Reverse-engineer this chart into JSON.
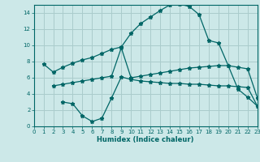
{
  "bg_color": "#cce8e8",
  "grid_color": "#aacccc",
  "line_color": "#006666",
  "xlabel": "Humidex (Indice chaleur)",
  "ylim": [
    0,
    15
  ],
  "xlim": [
    0,
    23
  ],
  "yticks": [
    0,
    2,
    4,
    6,
    8,
    10,
    12,
    14
  ],
  "xticks": [
    0,
    1,
    2,
    3,
    4,
    5,
    6,
    7,
    8,
    9,
    10,
    11,
    12,
    13,
    14,
    15,
    16,
    17,
    18,
    19,
    20,
    21,
    22,
    23
  ],
  "line1_x": [
    1,
    2,
    3,
    4,
    5,
    6,
    7,
    8,
    9,
    10,
    11,
    12,
    13,
    14,
    15,
    16,
    17,
    18,
    19,
    20,
    21,
    22,
    23
  ],
  "line1_y": [
    7.7,
    6.7,
    7.3,
    7.8,
    8.2,
    8.5,
    9.0,
    9.5,
    9.8,
    11.5,
    12.7,
    13.5,
    14.3,
    15.0,
    15.1,
    14.8,
    13.8,
    10.6,
    10.3,
    7.5,
    4.6,
    3.6,
    2.5
  ],
  "line2_x": [
    2,
    3,
    4,
    5,
    6,
    7,
    8,
    9,
    10,
    11,
    12,
    13,
    14,
    15,
    16,
    17,
    18,
    19,
    20,
    21,
    22,
    23
  ],
  "line2_y": [
    5.0,
    5.2,
    5.4,
    5.6,
    5.8,
    6.0,
    6.2,
    9.7,
    6.0,
    6.2,
    6.4,
    6.6,
    6.8,
    7.0,
    7.2,
    7.3,
    7.4,
    7.5,
    7.5,
    7.3,
    7.1,
    3.5
  ],
  "line3_x": [
    3,
    4,
    5,
    6,
    7,
    8,
    9,
    10,
    11,
    12,
    13,
    14,
    15,
    16,
    17,
    18,
    19,
    20,
    21,
    22,
    23
  ],
  "line3_y": [
    3.0,
    2.8,
    1.3,
    0.6,
    1.0,
    3.5,
    6.1,
    5.8,
    5.6,
    5.5,
    5.4,
    5.3,
    5.3,
    5.2,
    5.2,
    5.1,
    5.0,
    5.0,
    4.9,
    4.8,
    2.5
  ]
}
